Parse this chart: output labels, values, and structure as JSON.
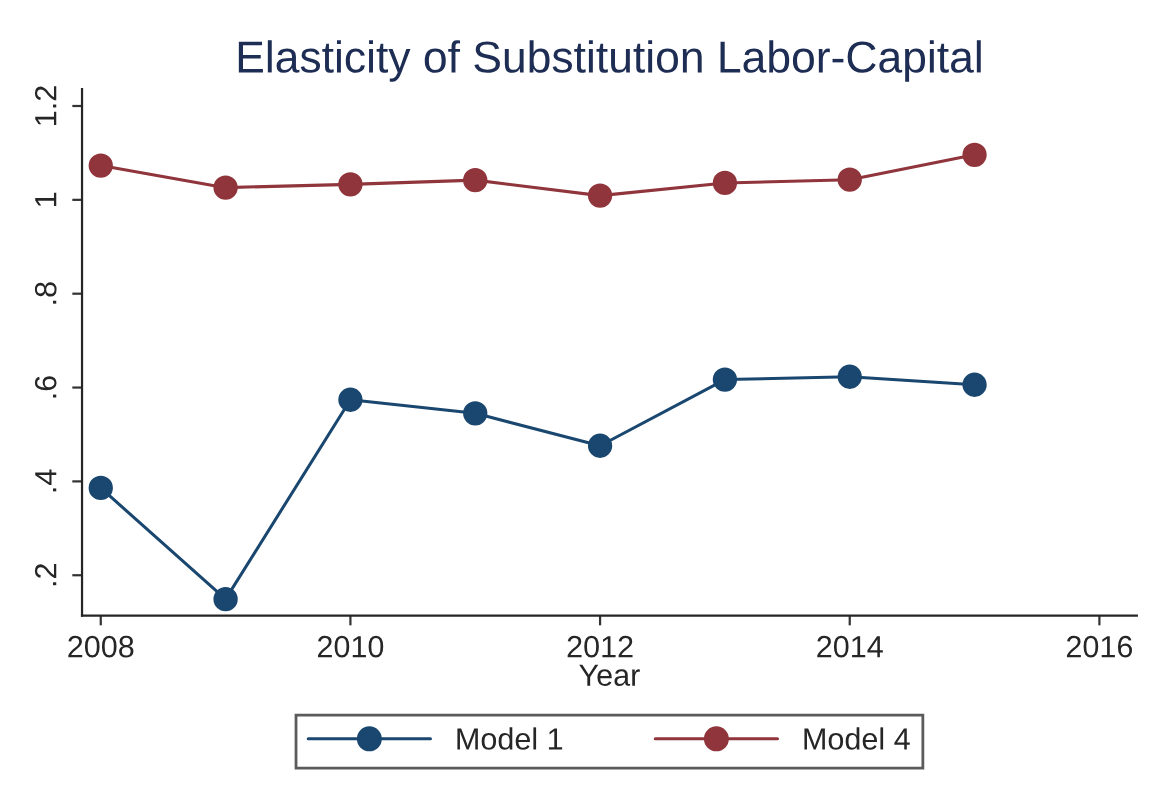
{
  "chart_data": {
    "type": "line",
    "title": "Elasticity of Substitution Labor-Capital",
    "xlabel": "Year",
    "x": [
      2008,
      2009,
      2010,
      2011,
      2012,
      2013,
      2014,
      2015
    ],
    "series": [
      {
        "name": "Model 1",
        "color": "#1a476f",
        "values": [
          0.386,
          0.149,
          0.574,
          0.545,
          0.476,
          0.617,
          0.623,
          0.606
        ]
      },
      {
        "name": "Model 4",
        "color": "#90353b",
        "values": [
          1.073,
          1.026,
          1.033,
          1.042,
          1.009,
          1.036,
          1.043,
          1.096
        ]
      }
    ],
    "xlim": [
      2007.85,
      2016.3
    ],
    "xticks": [
      2008,
      2010,
      2012,
      2014,
      2016
    ],
    "ylim": [
      0.114,
      1.236
    ],
    "yticks": [
      {
        "value": 0.2,
        "label": ".2"
      },
      {
        "value": 0.4,
        "label": ".4"
      },
      {
        "value": 0.6,
        "label": ".6"
      },
      {
        "value": 0.8,
        "label": ".8"
      },
      {
        "value": 1,
        "label": "1"
      },
      {
        "value": 1.2,
        "label": "1.2"
      }
    ],
    "marker": "circle",
    "line_style": "solid",
    "grid": false,
    "legend": "bottom"
  }
}
